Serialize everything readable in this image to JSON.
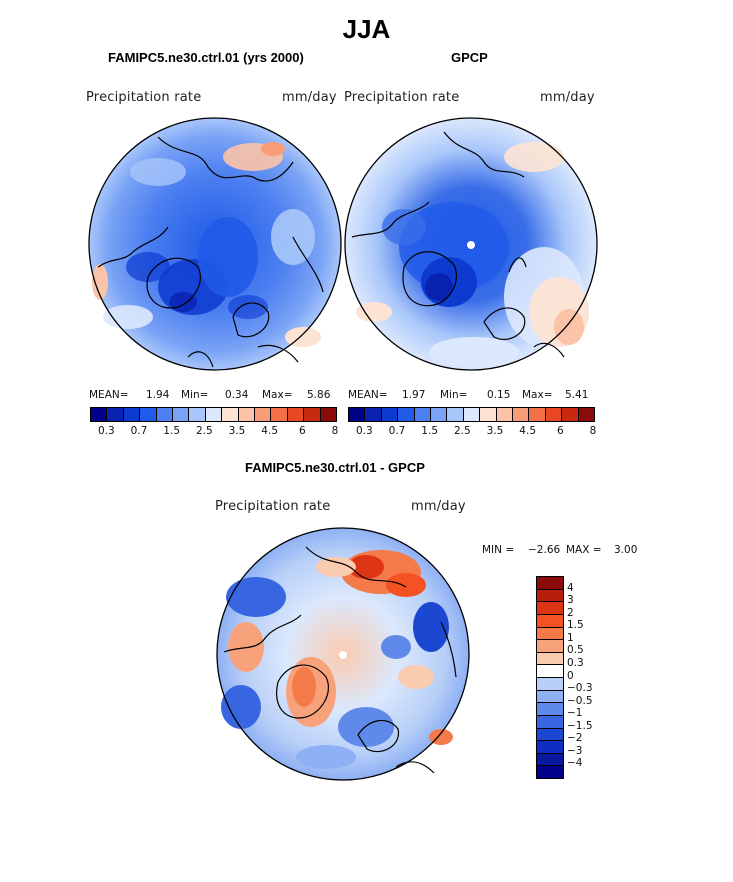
{
  "title": "JJA",
  "panels": [
    {
      "title": "FAMIPC5.ne30.ctrl.01 (yrs 2000)",
      "field": "Precipitation rate",
      "units": "mm/day",
      "mean_label": "MEAN=",
      "mean": "1.94",
      "min_label": "Min=",
      "min": "0.34",
      "max_label": "Max=",
      "max": "5.86"
    },
    {
      "title": "GPCP",
      "field": "Precipitation rate",
      "units": "mm/day",
      "mean_label": "MEAN=",
      "mean": "1.97",
      "min_label": "Min=",
      "min": "0.15",
      "max_label": "Max=",
      "max": "5.41"
    }
  ],
  "colorbar": {
    "colors": [
      "#00008b",
      "#0a22b0",
      "#0d3bd0",
      "#1f5ae8",
      "#4c7ff0",
      "#7aa3f5",
      "#a8c6fa",
      "#dbe8fd",
      "#fde3d4",
      "#fbc3a8",
      "#f89d78",
      "#f47148",
      "#e84822",
      "#c82a10",
      "#8b0a0a"
    ],
    "tick_labels": [
      "0.3",
      "0.7",
      "1.5",
      "2.5",
      "3.5",
      "4.5",
      "6",
      "8"
    ]
  },
  "diff": {
    "title": "FAMIPC5.ne30.ctrl.01 - GPCP",
    "field": "Precipitation rate",
    "units": "mm/day",
    "min_label": "MIN =",
    "min": "−2.66",
    "max_label": "MAX =",
    "max": "3.00",
    "colors": [
      "#8b0a0a",
      "#b81e0c",
      "#dc3414",
      "#f45222",
      "#f57a4a",
      "#f8a27c",
      "#fbcbb0",
      "#ffffff",
      "#b8cff7",
      "#8eb0f4",
      "#5f8ae9",
      "#3866e0",
      "#1c47d0",
      "#0d2ec0",
      "#0a18a0",
      "#00008b"
    ],
    "tick_labels": [
      "4",
      "3",
      "2",
      "1.5",
      "1",
      "0.5",
      "0.3",
      "0",
      "−0.3",
      "−0.5",
      "−1",
      "−1.5",
      "−2",
      "−3",
      "−4"
    ]
  }
}
